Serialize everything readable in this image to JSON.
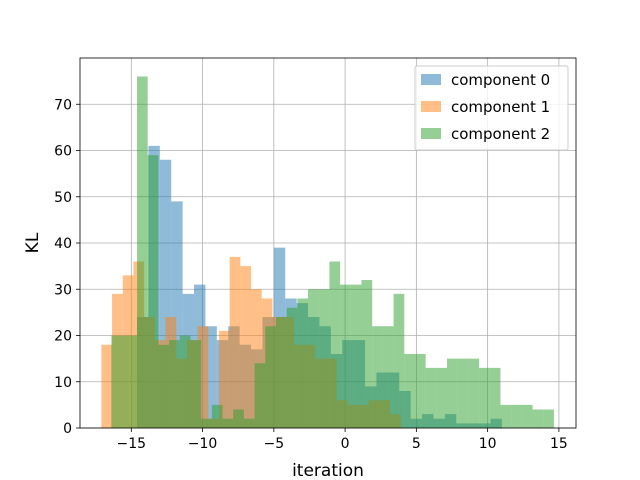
{
  "chart_data": {
    "type": "histogram",
    "title": "",
    "xlabel": "iteration",
    "ylabel": "KL",
    "xlim": [
      -18.6,
      16.2
    ],
    "ylim": [
      0,
      80
    ],
    "xticks": [
      -15,
      -10,
      -5,
      0,
      5,
      10,
      15
    ],
    "xtick_labels": [
      "−15",
      "−10",
      "−5",
      "0",
      "5",
      "10",
      "15"
    ],
    "yticks": [
      0,
      10,
      20,
      30,
      40,
      50,
      60,
      70
    ],
    "ytick_labels": [
      "0",
      "10",
      "20",
      "30",
      "40",
      "50",
      "60",
      "70"
    ],
    "grid": true,
    "legend_position": "top-right",
    "series": [
      {
        "name": "component 0",
        "color": "#1f77b4",
        "opacity": 0.5,
        "bins": [
          {
            "x0": -14.6,
            "x1": -13.8,
            "y": 24
          },
          {
            "x0": -13.8,
            "x1": -13.0,
            "y": 61
          },
          {
            "x0": -13.0,
            "x1": -12.2,
            "y": 58
          },
          {
            "x0": -12.2,
            "x1": -11.4,
            "y": 49
          },
          {
            "x0": -11.4,
            "x1": -10.6,
            "y": 29
          },
          {
            "x0": -10.6,
            "x1": -9.8,
            "y": 31
          },
          {
            "x0": -9.8,
            "x1": -9.0,
            "y": 22
          },
          {
            "x0": -9.0,
            "x1": -8.2,
            "y": 19
          },
          {
            "x0": -8.2,
            "x1": -7.4,
            "y": 22
          },
          {
            "x0": -7.4,
            "x1": -6.6,
            "y": 18
          },
          {
            "x0": -6.6,
            "x1": -5.8,
            "y": 17
          },
          {
            "x0": -5.8,
            "x1": -5.0,
            "y": 24
          },
          {
            "x0": -5.0,
            "x1": -4.2,
            "y": 39
          },
          {
            "x0": -4.2,
            "x1": -3.4,
            "y": 28
          },
          {
            "x0": -3.4,
            "x1": -2.6,
            "y": 27
          },
          {
            "x0": -2.6,
            "x1": -1.8,
            "y": 24
          },
          {
            "x0": -1.8,
            "x1": -1.0,
            "y": 22
          },
          {
            "x0": -1.0,
            "x1": -0.2,
            "y": 16
          },
          {
            "x0": -0.2,
            "x1": 0.6,
            "y": 19
          },
          {
            "x0": 0.6,
            "x1": 1.4,
            "y": 19
          },
          {
            "x0": 1.4,
            "x1": 2.2,
            "y": 9
          },
          {
            "x0": 2.2,
            "x1": 3.0,
            "y": 12
          },
          {
            "x0": 3.0,
            "x1": 3.8,
            "y": 12
          },
          {
            "x0": 3.8,
            "x1": 4.6,
            "y": 8
          },
          {
            "x0": 4.6,
            "x1": 5.4,
            "y": 2
          },
          {
            "x0": 5.4,
            "x1": 6.2,
            "y": 3
          },
          {
            "x0": 6.2,
            "x1": 7.0,
            "y": 2
          },
          {
            "x0": 7.0,
            "x1": 7.8,
            "y": 3
          },
          {
            "x0": 7.8,
            "x1": 8.6,
            "y": 1
          },
          {
            "x0": 8.6,
            "x1": 9.4,
            "y": 1
          },
          {
            "x0": 9.4,
            "x1": 10.2,
            "y": 1
          },
          {
            "x0": 10.2,
            "x1": 11.0,
            "y": 2
          }
        ]
      },
      {
        "name": "component 1",
        "color": "#ff7f0e",
        "opacity": 0.5,
        "bins": [
          {
            "x0": -17.1,
            "x1": -16.35,
            "y": 18
          },
          {
            "x0": -16.35,
            "x1": -15.6,
            "y": 29
          },
          {
            "x0": -15.6,
            "x1": -14.85,
            "y": 33
          },
          {
            "x0": -14.85,
            "x1": -14.1,
            "y": 36
          },
          {
            "x0": -14.1,
            "x1": -13.35,
            "y": 24
          },
          {
            "x0": -13.35,
            "x1": -12.6,
            "y": 19
          },
          {
            "x0": -12.6,
            "x1": -11.85,
            "y": 24
          },
          {
            "x0": -11.85,
            "x1": -11.1,
            "y": 15
          },
          {
            "x0": -11.1,
            "x1": -10.35,
            "y": 19
          },
          {
            "x0": -10.35,
            "x1": -9.6,
            "y": 22
          },
          {
            "x0": -9.6,
            "x1": -8.85,
            "y": 2
          },
          {
            "x0": -8.85,
            "x1": -8.1,
            "y": 21
          },
          {
            "x0": -8.1,
            "x1": -7.35,
            "y": 37
          },
          {
            "x0": -7.35,
            "x1": -6.6,
            "y": 35
          },
          {
            "x0": -6.6,
            "x1": -5.85,
            "y": 30
          },
          {
            "x0": -5.85,
            "x1": -5.1,
            "y": 28
          },
          {
            "x0": -5.1,
            "x1": -4.35,
            "y": 24
          },
          {
            "x0": -4.35,
            "x1": -3.6,
            "y": 24
          },
          {
            "x0": -3.6,
            "x1": -2.85,
            "y": 18
          },
          {
            "x0": -2.85,
            "x1": -2.1,
            "y": 18
          },
          {
            "x0": -2.1,
            "x1": -1.35,
            "y": 15
          },
          {
            "x0": -1.35,
            "x1": -0.6,
            "y": 15
          },
          {
            "x0": -0.6,
            "x1": 0.15,
            "y": 6
          },
          {
            "x0": 0.15,
            "x1": 0.9,
            "y": 5
          },
          {
            "x0": 0.9,
            "x1": 1.65,
            "y": 5
          },
          {
            "x0": 1.65,
            "x1": 2.4,
            "y": 6
          },
          {
            "x0": 2.4,
            "x1": 3.15,
            "y": 6
          },
          {
            "x0": 3.15,
            "x1": 3.9,
            "y": 3
          }
        ]
      },
      {
        "name": "component 2",
        "color": "#2ca02c",
        "opacity": 0.5,
        "bins": [
          {
            "x0": -16.4,
            "x1": -15.15,
            "y": 20
          },
          {
            "x0": -15.15,
            "x1": -14.6,
            "y": 20
          },
          {
            "x0": -14.6,
            "x1": -13.85,
            "y": 76
          },
          {
            "x0": -13.85,
            "x1": -13.1,
            "y": 59
          },
          {
            "x0": -13.1,
            "x1": -12.35,
            "y": 18
          },
          {
            "x0": -12.35,
            "x1": -11.6,
            "y": 19
          },
          {
            "x0": -11.6,
            "x1": -10.85,
            "y": 20
          },
          {
            "x0": -10.85,
            "x1": -10.1,
            "y": 19
          },
          {
            "x0": -10.1,
            "x1": -9.35,
            "y": 2
          },
          {
            "x0": -9.35,
            "x1": -8.6,
            "y": 5
          },
          {
            "x0": -8.6,
            "x1": -7.85,
            "y": 2
          },
          {
            "x0": -7.85,
            "x1": -7.1,
            "y": 4
          },
          {
            "x0": -7.1,
            "x1": -6.35,
            "y": 2
          },
          {
            "x0": -6.35,
            "x1": -5.6,
            "y": 14
          },
          {
            "x0": -5.6,
            "x1": -4.85,
            "y": 22
          },
          {
            "x0": -4.85,
            "x1": -4.1,
            "y": 24
          },
          {
            "x0": -4.1,
            "x1": -3.35,
            "y": 26
          },
          {
            "x0": -3.35,
            "x1": -2.6,
            "y": 28
          },
          {
            "x0": -2.6,
            "x1": -1.85,
            "y": 30
          },
          {
            "x0": -1.85,
            "x1": -1.1,
            "y": 30
          },
          {
            "x0": -1.1,
            "x1": -0.35,
            "y": 36
          },
          {
            "x0": -0.35,
            "x1": 0.4,
            "y": 31
          },
          {
            "x0": 0.4,
            "x1": 1.15,
            "y": 31
          },
          {
            "x0": 1.15,
            "x1": 1.9,
            "y": 32
          },
          {
            "x0": 1.9,
            "x1": 2.65,
            "y": 22
          },
          {
            "x0": 2.65,
            "x1": 3.4,
            "y": 22
          },
          {
            "x0": 3.4,
            "x1": 4.15,
            "y": 29
          },
          {
            "x0": 4.15,
            "x1": 4.9,
            "y": 16
          },
          {
            "x0": 4.9,
            "x1": 5.65,
            "y": 16
          },
          {
            "x0": 5.65,
            "x1": 6.4,
            "y": 13
          },
          {
            "x0": 6.4,
            "x1": 7.15,
            "y": 13
          },
          {
            "x0": 7.15,
            "x1": 7.9,
            "y": 15
          },
          {
            "x0": 7.9,
            "x1": 8.65,
            "y": 15
          },
          {
            "x0": 8.65,
            "x1": 9.4,
            "y": 15
          },
          {
            "x0": 9.4,
            "x1": 10.15,
            "y": 13
          },
          {
            "x0": 10.15,
            "x1": 10.9,
            "y": 13
          },
          {
            "x0": 10.9,
            "x1": 11.65,
            "y": 5
          },
          {
            "x0": 11.65,
            "x1": 12.4,
            "y": 5
          },
          {
            "x0": 12.4,
            "x1": 13.15,
            "y": 5
          },
          {
            "x0": 13.15,
            "x1": 13.9,
            "y": 4
          },
          {
            "x0": 13.9,
            "x1": 14.65,
            "y": 4
          }
        ]
      }
    ]
  }
}
